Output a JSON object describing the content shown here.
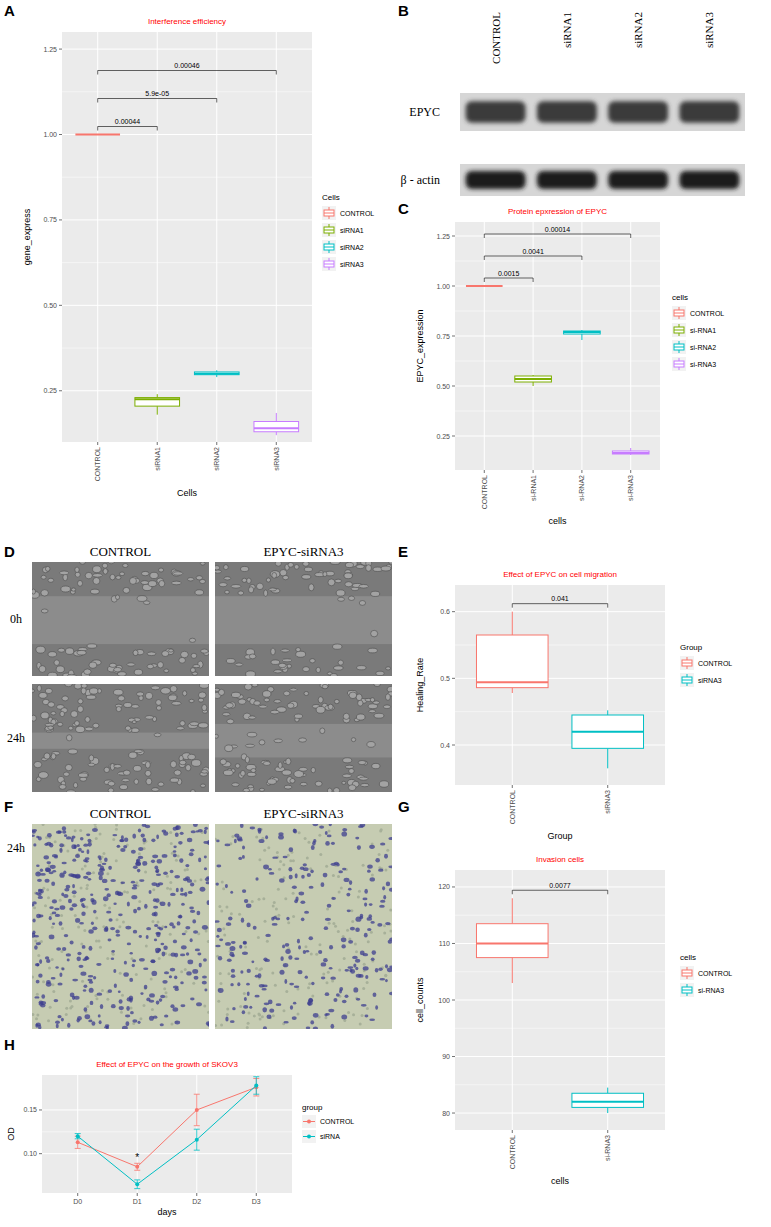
{
  "panel_labels": [
    "A",
    "B",
    "C",
    "D",
    "E",
    "F",
    "G",
    "H"
  ],
  "blot": {
    "lanes": [
      "CONTROL",
      "siRNA1",
      "siRNA2",
      "siRNA3"
    ],
    "rows": [
      "EPYC",
      "β - actin"
    ]
  },
  "migration_images": {
    "columns": [
      "CONTROL",
      "EPYC-siRNA3"
    ],
    "rows": [
      "0h",
      "24h"
    ]
  },
  "invasion_images": {
    "columns": [
      "CONTROL",
      "EPYC-siRNA3"
    ],
    "rows": [
      "24h"
    ]
  },
  "chart_data": [
    {
      "type": "box",
      "title": "Interference efficiency",
      "x_label": "Cells",
      "y_label": "gene_express",
      "legend_title": "Cells",
      "categories": [
        "CONTROL",
        "siRNA1",
        "siRNA2",
        "siRNA3"
      ],
      "colors": [
        "#F8766D",
        "#7CAE00",
        "#00BFC4",
        "#C77CFF"
      ],
      "boxes": [
        {
          "min": 1,
          "q1": 1,
          "median": 1,
          "q3": 1,
          "max": 1
        },
        {
          "min": 0.18,
          "q1": 0.205,
          "median": 0.225,
          "q3": 0.23,
          "max": 0.24
        },
        {
          "min": 0.29,
          "q1": 0.297,
          "median": 0.3,
          "q3": 0.305,
          "max": 0.31
        },
        {
          "min": 0.12,
          "q1": 0.13,
          "median": 0.14,
          "q3": 0.16,
          "max": 0.185
        }
      ],
      "comparisons": [
        {
          "groups": [
            "CONTROL",
            "siRNA1"
          ],
          "label": "0.00044"
        },
        {
          "groups": [
            "CONTROL",
            "siRNA2"
          ],
          "label": "5.9e-05"
        },
        {
          "groups": [
            "CONTROL",
            "siRNA3"
          ],
          "label": "0.00046"
        }
      ],
      "ylim": [
        0.1,
        1.3
      ],
      "yticks": [
        0.25,
        {
          "value": 0.5,
          "label": "0.50"
        },
        0.75,
        {
          "value": 1,
          "label": "1.00"
        },
        1.25
      ],
      "grid": true,
      "legend": "right"
    },
    {
      "type": "box",
      "title": "Protein epxression of EPYC",
      "x_label": "cells",
      "y_label": "EPYC_expression",
      "legend_title": "cells",
      "categories": [
        "CONTROL",
        "si-RNA1",
        "si-RNA2",
        "si-RNA3"
      ],
      "colors": [
        "#F8766D",
        "#7CAE00",
        "#00BFC4",
        "#C77CFF"
      ],
      "boxes": [
        {
          "min": 1,
          "q1": 1,
          "median": 1,
          "q3": 1,
          "max": 1
        },
        {
          "min": 0.5,
          "q1": 0.52,
          "median": 0.535,
          "q3": 0.55,
          "max": 0.555
        },
        {
          "min": 0.73,
          "q1": 0.76,
          "median": 0.77,
          "q3": 0.775,
          "max": 0.78
        },
        {
          "min": 0.155,
          "q1": 0.16,
          "median": 0.165,
          "q3": 0.175,
          "max": 0.19
        }
      ],
      "comparisons": [
        {
          "groups": [
            "CONTROL",
            "si-RNA1"
          ],
          "label": "0.0015"
        },
        {
          "groups": [
            "CONTROL",
            "si-RNA2"
          ],
          "label": "0.0041"
        },
        {
          "groups": [
            "CONTROL",
            "si-RNA3"
          ],
          "label": "0.00014"
        }
      ],
      "ylim": [
        0.08,
        1.32
      ],
      "yticks": [
        0.25,
        {
          "value": 0.5,
          "label": "0.50"
        },
        0.75,
        {
          "value": 1,
          "label": "1.00"
        },
        1.25
      ],
      "grid": true,
      "legend": "right"
    },
    {
      "type": "box",
      "title": "Effect of EPYC on cell migration",
      "x_label": "Group",
      "y_label": "Healing_Rate",
      "legend_title": "Group",
      "categories": [
        "CONTROL",
        "siRNA3"
      ],
      "colors": [
        "#F8766D",
        "#00BFC4"
      ],
      "boxes": [
        {
          "min": 0.478,
          "q1": 0.486,
          "median": 0.494,
          "q3": 0.565,
          "max": 0.6
        },
        {
          "min": 0.365,
          "q1": 0.395,
          "median": 0.42,
          "q3": 0.445,
          "max": 0.452
        }
      ],
      "comparisons": [
        {
          "groups": [
            "CONTROL",
            "siRNA3"
          ],
          "label": "0.041"
        }
      ],
      "ylim": [
        0.34,
        0.64
      ],
      "yticks": [
        0.4,
        0.5,
        0.6
      ],
      "grid": true,
      "legend": "right"
    },
    {
      "type": "box",
      "title": "Invasion cells",
      "x_label": "cells",
      "y_label": "cell_counts",
      "legend_title": "cells",
      "categories": [
        "CONTROL",
        "si-RNA3"
      ],
      "colors": [
        "#F8766D",
        "#00BFC4"
      ],
      "boxes": [
        {
          "min": 103,
          "q1": 107.5,
          "median": 110,
          "q3": 113.5,
          "max": 118
        },
        {
          "min": 80,
          "q1": 81,
          "median": 82,
          "q3": 83.5,
          "max": 84.5
        }
      ],
      "comparisons": [
        {
          "groups": [
            "CONTROL",
            "si-RNA3"
          ],
          "label": "0.0077"
        }
      ],
      "ylim": [
        77,
        123
      ],
      "yticks": [
        80,
        90,
        100,
        110,
        120
      ],
      "grid": true,
      "legend": "right"
    },
    {
      "type": "line",
      "title": "Effect of EPYC on the growth of SKOV3",
      "x_label": "days",
      "y_label": "OD",
      "legend_title": "group",
      "categories": [
        "D0",
        "D1",
        "D2",
        "D3"
      ],
      "series": [
        {
          "name": "CONTROL",
          "color": "#F8766D",
          "values": [
            0.113,
            0.085,
            0.15,
            0.176
          ],
          "errors": [
            0.007,
            0.004,
            0.018,
            0.01
          ]
        },
        {
          "name": "siRNA",
          "color": "#00BFC4",
          "values": [
            0.12,
            0.065,
            0.116,
            0.178
          ],
          "errors": [
            0.003,
            0.005,
            0.012,
            0.01
          ]
        }
      ],
      "annotations": [
        {
          "text": "*",
          "x": "D1"
        }
      ],
      "ylim": [
        0.055,
        0.19
      ],
      "yticks": [
        {
          "value": 0.1,
          "label": "0.10"
        },
        0.15
      ],
      "grid": true,
      "legend": "right",
      "marker": "circle"
    }
  ]
}
